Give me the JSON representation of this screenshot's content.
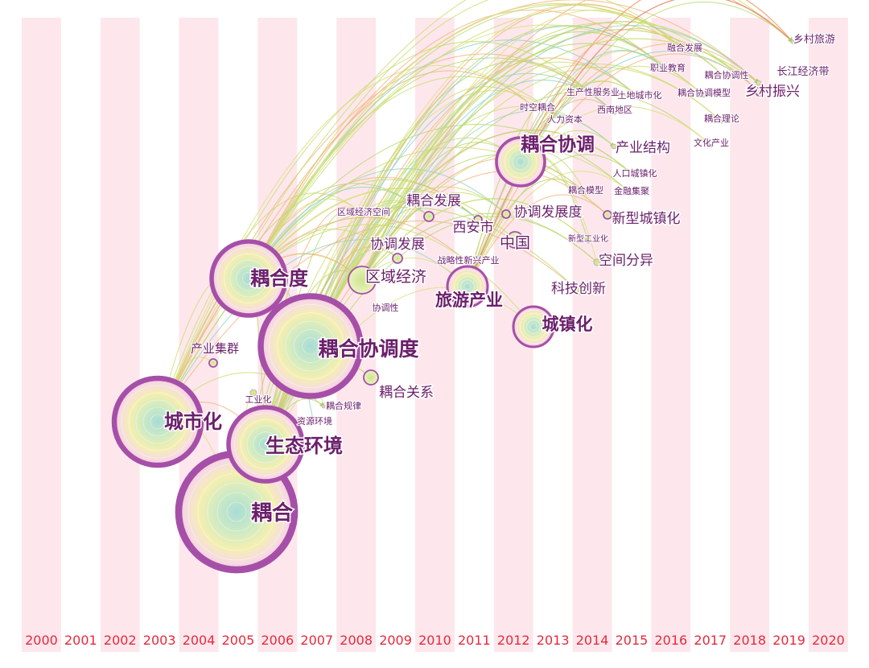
{
  "years": [
    "2000",
    "2001",
    "2002",
    "2003",
    "2004",
    "2005",
    "2006",
    "2007",
    "2008",
    "2009",
    "2010",
    "2011",
    "2012",
    "2013",
    "2014",
    "2015",
    "2016",
    "2017",
    "2018",
    "2019",
    "2020"
  ],
  "colors": {
    "band": "#fde7ec",
    "year_label": "#e8283c",
    "node_label": "#6b1f6b",
    "ring_outer": "#a64fa8",
    "core_inner": "#b8e3d8",
    "core_mid": "#f4efb0",
    "core_outer": "#f6d7e4",
    "link_colors": [
      "#b6d86a",
      "#d9e07a",
      "#8fd2c4",
      "#f3b27a",
      "#c9dd6b"
    ]
  },
  "nodes": [
    {
      "id": "ouhe",
      "label": "耦合",
      "year": 2005,
      "size": "xl"
    },
    {
      "id": "chengshihua",
      "label": "城市化",
      "year": 2003,
      "size": "l"
    },
    {
      "id": "shengtai",
      "label": "生态环境",
      "year": 2006,
      "size": "l"
    },
    {
      "id": "ouhedu",
      "label": "耦合度",
      "year": 2006,
      "size": "l"
    },
    {
      "id": "ouhexietiaodu",
      "label": "耦合协调度",
      "year": 2007,
      "size": "xl"
    },
    {
      "id": "chanyejiqun",
      "label": "产业集群",
      "year": 2004,
      "size": "s"
    },
    {
      "id": "gongyehua",
      "label": "工业化",
      "year": 2005,
      "size": "xs"
    },
    {
      "id": "ouheguanxi",
      "label": "耦合关系",
      "year": 2008,
      "size": "m"
    },
    {
      "id": "ouheguilv",
      "label": "耦合规律",
      "year": 2008,
      "size": "xs"
    },
    {
      "id": "ziyuanhuanjing",
      "label": "资源环境",
      "year": 2007,
      "size": "xs"
    },
    {
      "id": "quyujingji",
      "label": "区域经济",
      "year": 2008,
      "size": "m"
    },
    {
      "id": "xietiaofazhan",
      "label": "协调发展",
      "year": 2008,
      "size": "m"
    },
    {
      "id": "xietiaoxing",
      "label": "协调性",
      "year": 2008,
      "size": "xs"
    },
    {
      "id": "quyujingjikongjian",
      "label": "区域经济空间",
      "year": 2008,
      "size": "xs"
    },
    {
      "id": "ouhefazhan",
      "label": "耦合发展",
      "year": 2010,
      "size": "m"
    },
    {
      "id": "zhanlue",
      "label": "战略性新兴产业",
      "year": 2010,
      "size": "xs"
    },
    {
      "id": "lvyouchanye",
      "label": "旅游产业",
      "year": 2011,
      "size": "l"
    },
    {
      "id": "xianshi",
      "label": "西安市",
      "year": 2011,
      "size": "m"
    },
    {
      "id": "zhongguo",
      "label": "中国",
      "year": 2012,
      "size": "m"
    },
    {
      "id": "xietiaofazhandu",
      "label": "协调发展度",
      "year": 2012,
      "size": "m"
    },
    {
      "id": "ouhexietiao",
      "label": "耦合协调",
      "year": 2012,
      "size": "xl"
    },
    {
      "id": "chengzhenhua",
      "label": "城镇化",
      "year": 2013,
      "size": "l"
    },
    {
      "id": "kejichuangxin",
      "label": "科技创新",
      "year": 2013,
      "size": "m"
    },
    {
      "id": "ouhemoxing",
      "label": "耦合模型",
      "year": 2013,
      "size": "xs"
    },
    {
      "id": "xinxinggongyehua",
      "label": "新型工业化",
      "year": 2013,
      "size": "xs"
    },
    {
      "id": "kongjianfenyi",
      "label": "空间分异",
      "year": 2014,
      "size": "m"
    },
    {
      "id": "xinxingchengzhenhua",
      "label": "新型城镇化",
      "year": 2014,
      "size": "m"
    },
    {
      "id": "chanyejiegou",
      "label": "产业结构",
      "year": 2015,
      "size": "m"
    },
    {
      "id": "renkouchengzhenhua",
      "label": "人口城镇化",
      "year": 2014,
      "size": "xs"
    },
    {
      "id": "jinrongjiju",
      "label": "金融集聚",
      "year": 2014,
      "size": "xs"
    },
    {
      "id": "shikongouhe",
      "label": "时空耦合",
      "year": 2012,
      "size": "xs"
    },
    {
      "id": "renliziben",
      "label": "人力资本",
      "year": 2013,
      "size": "xs"
    },
    {
      "id": "xinandiqu",
      "label": "西南地区",
      "year": 2014,
      "size": "xs"
    },
    {
      "id": "shengchanxing",
      "label": "生产性服务业",
      "year": 2013,
      "size": "xs"
    },
    {
      "id": "tudichengshihua",
      "label": "土地城市化",
      "year": 2015,
      "size": "xs"
    },
    {
      "id": "zhiyejiaoyu",
      "label": "职业教育",
      "year": 2015,
      "size": "xs"
    },
    {
      "id": "ronghefazhan",
      "label": "融合发展",
      "year": 2016,
      "size": "xs"
    },
    {
      "id": "ouhexietiaoxing",
      "label": "耦合协调性",
      "year": 2017,
      "size": "xs"
    },
    {
      "id": "ouhexietiaomoxing",
      "label": "耦合协调模型",
      "year": 2016,
      "size": "xs"
    },
    {
      "id": "ouhelilun",
      "label": "耦合理论",
      "year": 2017,
      "size": "xs"
    },
    {
      "id": "wenhuachanye",
      "label": "文化产业",
      "year": 2017,
      "size": "xs"
    },
    {
      "id": "xiangcunzhenxing",
      "label": "乡村振兴",
      "year": 2018,
      "size": "m"
    },
    {
      "id": "changjiang",
      "label": "长江经济带",
      "year": 2019,
      "size": "s"
    },
    {
      "id": "xiangcunlvyou",
      "label": "乡村旅游",
      "year": 2019,
      "size": "s"
    }
  ]
}
